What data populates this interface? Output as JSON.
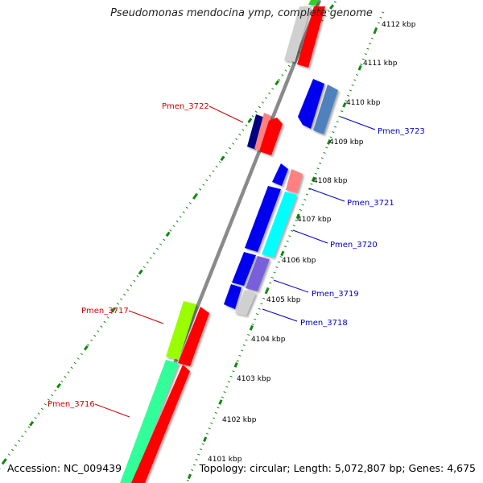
{
  "title": "Pseudomonas mendocina ymp, complete genome",
  "footer": {
    "accession": "Accession: NC_009439",
    "stats": "Topology: circular; Length: 5,072,807 bp; Genes: 4,675"
  },
  "map": {
    "ticks": [
      {
        "label": "4101 kbp"
      },
      {
        "label": "4102 kbp"
      },
      {
        "label": "4103 kbp"
      },
      {
        "label": "4104 kbp"
      },
      {
        "label": "4105 kbp"
      },
      {
        "label": "4106 kbp"
      },
      {
        "label": "4107 kbp"
      },
      {
        "label": "4108 kbp"
      },
      {
        "label": "4109 kbp"
      },
      {
        "label": "4110 kbp"
      },
      {
        "label": "4111 kbp"
      },
      {
        "label": "4112 kbp"
      }
    ],
    "gene_labels": [
      {
        "text": "Pmen_3723",
        "color": "#0000cc"
      },
      {
        "text": "Pmen_3722",
        "color": "#cc0000"
      },
      {
        "text": "Pmen_3721",
        "color": "#0000cc"
      },
      {
        "text": "Pmen_3720",
        "color": "#0000cc"
      },
      {
        "text": "Pmen_3719",
        "color": "#0000cc"
      },
      {
        "text": "Pmen_3718",
        "color": "#0000cc"
      },
      {
        "text": "Pmen_3717",
        "color": "#cc0000"
      },
      {
        "text": "Pmen_3716",
        "color": "#cc0000"
      }
    ],
    "colors": {
      "backbone": "#8a8a8a",
      "tick": "#118811",
      "forward_cds": "#ff0000",
      "reverse_cds": "#0000ee",
      "cyan": "#00ffff",
      "spring_green": "#33ff99",
      "yellow_green": "#99ff00",
      "light_gray": "#d0d0d0",
      "salmon": "#ff8080",
      "steel_blue": "#4f81bd",
      "medium_purple": "#7a60d8",
      "navy": "#000080",
      "green": "#33cc33"
    }
  }
}
